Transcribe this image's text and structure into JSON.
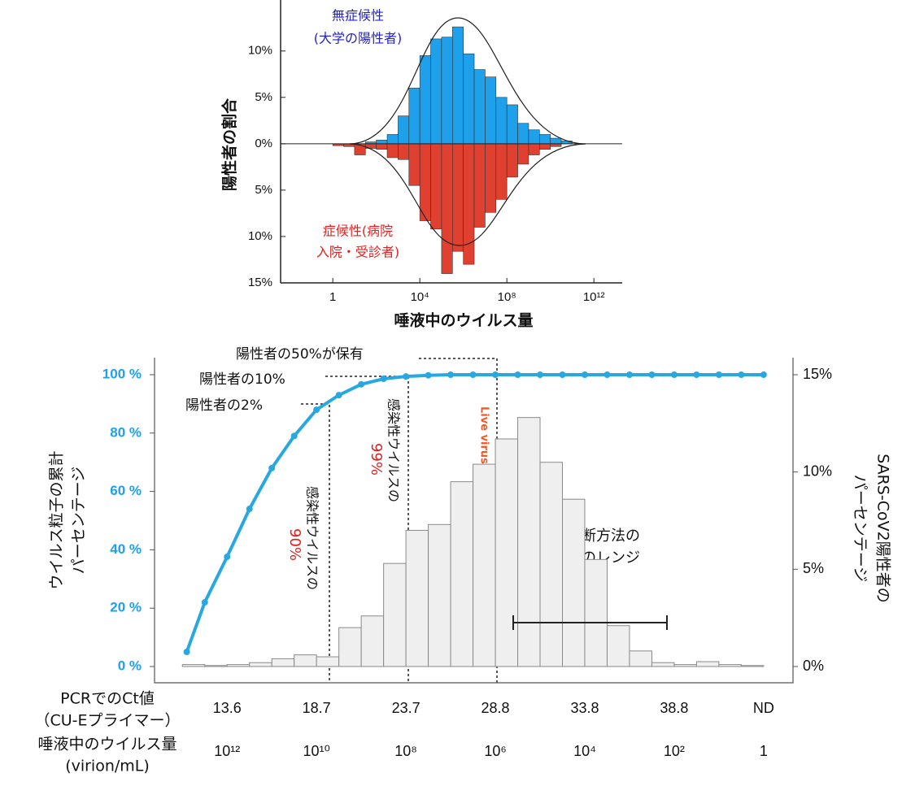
{
  "chart_data": [
    {
      "type": "histogram",
      "xlabel": "唾液中のウイルス量",
      "ylabel": "陽性者の割合",
      "annotations": [
        "無症候性",
        "(大学の陽性者)",
        "症候性(病院",
        "入院・受診者)"
      ],
      "xscale": "log",
      "xlim": [
        0.004,
        20000000000000.0
      ],
      "xticks": [
        1,
        {
          "value": 10000.0,
          "label": "10⁴"
        },
        {
          "value": 100000000.0,
          "label": "10⁸"
        },
        {
          "value": 1000000000000.0,
          "label": "10¹²"
        }
      ],
      "ylim": [
        -15,
        15.5
      ],
      "yticks": [
        {
          "value": 10,
          "label": "10%"
        },
        {
          "value": 5,
          "label": "5%"
        },
        {
          "value": 0,
          "label": "0%"
        },
        {
          "value": -5,
          "label": "5%"
        },
        {
          "value": -10,
          "label": "10%"
        },
        {
          "value": -15,
          "label": "15%"
        }
      ],
      "bins": [
        1,
        3.16,
        10,
        31.6,
        100,
        316,
        1000.0,
        3160.0,
        10000.0,
        31600.0,
        100000.0,
        316000.0,
        1000000.0,
        3160000.0,
        10000000.0,
        31600000.0,
        100000000.0,
        316000000.0,
        1000000000.0,
        3160000000.0,
        10000000000.0,
        31600000000.0,
        100000000000.0,
        316000000000.0,
        1000000000000.0
      ],
      "series": [
        {
          "color": "#1ea0ea",
          "values": [
            0,
            0,
            0,
            0.2,
            0.4,
            1,
            3,
            6,
            9.5,
            11.3,
            11.5,
            12.6,
            9.7,
            8,
            7.2,
            5,
            4.2,
            2.2,
            1.5,
            1,
            0.6,
            0.3,
            0,
            0
          ]
        },
        {
          "color": "#e0402f",
          "values": [
            -0.2,
            -0.3,
            -1.2,
            -0.5,
            -0.6,
            -1.5,
            -1.7,
            -4.5,
            -8.3,
            -9.2,
            -14,
            -11.6,
            -13,
            -9,
            -7.4,
            -6,
            -3.6,
            -2.2,
            -1.2,
            -0.6,
            -0.3,
            0,
            0,
            0
          ]
        }
      ]
    },
    {
      "type": "combo",
      "ylabel": [
        "ウイルス粒子の累計",
        "パーセンテージ"
      ],
      "y2label": [
        "SARS-CoV2陽性者の",
        "パーセンテージ"
      ],
      "x2label": [
        "PCRでのCt値",
        "（CU-Eプライマー）"
      ],
      "xlabel": [
        "唾液中のウイルス量",
        "(virion/mL)"
      ],
      "annotations": [
        "陽性者の50%が保有",
        "陽性者の10%",
        "陽性者の2%",
        "感染性ウイルスの",
        "90%",
        "感染性ウイルスの",
        "99%",
        "Live virus",
        "現行の診断方法の",
        "検出限界のレンジ"
      ],
      "xscale": "log",
      "xlim": [
        42000000000000.0,
        0.22
      ],
      "xticks": [
        {
          "value": 1000000000000.0,
          "label": "10¹²"
        },
        {
          "value": 10000000000.0,
          "label": "10¹⁰"
        },
        {
          "value": 100000000.0,
          "label": "10⁸"
        },
        {
          "value": 1000000.0,
          "label": "10⁶"
        },
        {
          "value": 10000.0,
          "label": "10⁴"
        },
        {
          "value": 100,
          "label": "10²"
        },
        1
      ],
      "x2ticks": [
        {
          "value": 1000000000000.0,
          "label": "13.6"
        },
        {
          "value": 10000000000.0,
          "label": "18.7"
        },
        {
          "value": 100000000.0,
          "label": "23.7"
        },
        {
          "value": 1000000.0,
          "label": "28.8"
        },
        {
          "value": 10000.0,
          "label": "33.8"
        },
        {
          "value": 100,
          "label": "38.8"
        },
        {
          "value": 1,
          "label": "ND"
        }
      ],
      "ylim": [
        0,
        100
      ],
      "yticks": [
        {
          "value": 0,
          "label": "0 %"
        },
        {
          "value": 20,
          "label": "20 %"
        },
        {
          "value": 40,
          "label": "40 %"
        },
        {
          "value": 60,
          "label": "60 %"
        },
        {
          "value": 80,
          "label": "80 %"
        },
        {
          "value": 100,
          "label": "100 %"
        }
      ],
      "y2lim": [
        0,
        15
      ],
      "y2ticks": [
        {
          "value": 0,
          "label": "0%"
        },
        {
          "value": 5,
          "label": "5%"
        },
        {
          "value": 10,
          "label": "10%"
        },
        {
          "value": 15,
          "label": "15%"
        }
      ],
      "bins": [
        10000000000000.0,
        3160000000000.0,
        1000000000000.0,
        316000000000.0,
        100000000000.0,
        31600000000.0,
        10000000000.0,
        3160000000.0,
        1000000000.0,
        316000000.0,
        100000000.0,
        31600000.0,
        10000000.0,
        3160000.0,
        1000000.0,
        316000.0,
        100000.0,
        31600.0,
        10000.0,
        3160.0,
        1000.0,
        316,
        100,
        31.6,
        10,
        3.16,
        1
      ],
      "series": [
        {
          "type": "histogram",
          "axis": "y2",
          "color": "#efefef",
          "values": [
            0.1,
            0.05,
            0.1,
            0.2,
            0.4,
            0.6,
            0.5,
            2,
            2.6,
            5.3,
            7,
            7.3,
            9.5,
            10.4,
            11.7,
            12.8,
            10.5,
            8.6,
            5.5,
            2.1,
            0.8,
            0.2,
            0.1,
            0.25,
            0.1,
            0.05
          ]
        },
        {
          "type": "line",
          "color": "#29a8e0",
          "x": [
            8000000000000.0,
            3160000000000.0,
            1000000000000.0,
            316000000000.0,
            100000000000.0,
            31600000000.0,
            10000000000.0,
            3160000000.0,
            1000000000.0,
            316000000.0,
            100000000.0,
            31600000.0,
            10000000.0,
            3160000.0,
            1000000.0,
            316000.0,
            100000.0,
            31600.0,
            10000.0,
            3160.0,
            1000.0,
            316,
            100,
            31.6,
            10,
            3.16,
            1
          ],
          "values": [
            5,
            22,
            37.6,
            54,
            68,
            79,
            88,
            93,
            96.7,
            98.6,
            99.4,
            99.8,
            100,
            100,
            100,
            100,
            100,
            100,
            100,
            100,
            100,
            100,
            100,
            100,
            100,
            100,
            100
          ]
        }
      ]
    }
  ]
}
